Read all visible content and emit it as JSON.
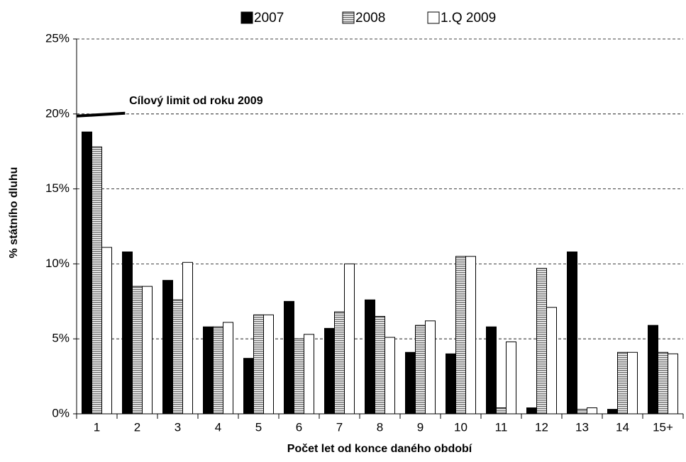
{
  "chart_data": {
    "type": "bar",
    "x_label": "Počet let od konce daného období",
    "y_label": "% státního dluhu",
    "annotation": "Cílový limit od roku 2009",
    "target": 20,
    "categories": [
      "1",
      "2",
      "3",
      "4",
      "5",
      "6",
      "7",
      "8",
      "9",
      "10",
      "11",
      "12",
      "13",
      "14",
      "15+"
    ],
    "series": [
      {
        "name": "2007",
        "color": "#000000",
        "values": [
          18.8,
          10.8,
          8.9,
          5.8,
          3.7,
          7.5,
          5.7,
          7.6,
          4.1,
          4.0,
          5.8,
          0.4,
          10.8,
          0.3,
          5.9
        ]
      },
      {
        "name": "2008",
        "color": "#c0c0c0",
        "pattern": "horizontal-stripes",
        "values": [
          17.8,
          8.5,
          7.6,
          5.8,
          6.6,
          5.0,
          6.8,
          6.5,
          5.9,
          10.5,
          0.4,
          9.7,
          0.3,
          4.1,
          4.1
        ]
      },
      {
        "name": "1.Q 2009",
        "color": "#ffffff",
        "values": [
          11.1,
          8.5,
          10.1,
          6.1,
          6.6,
          5.3,
          10.0,
          5.1,
          6.2,
          10.5,
          4.8,
          7.1,
          0.4,
          4.1,
          4.0
        ]
      }
    ],
    "ylim": [
      0,
      25
    ],
    "yticks": [
      {
        "value": 0,
        "label": "0%"
      },
      {
        "value": 5,
        "label": "5%"
      },
      {
        "value": 10,
        "label": "10%"
      },
      {
        "value": 15,
        "label": "15%"
      },
      {
        "value": 20,
        "label": "20%"
      },
      {
        "value": 25,
        "label": "25%"
      }
    ],
    "grid": true,
    "legend": "top"
  }
}
